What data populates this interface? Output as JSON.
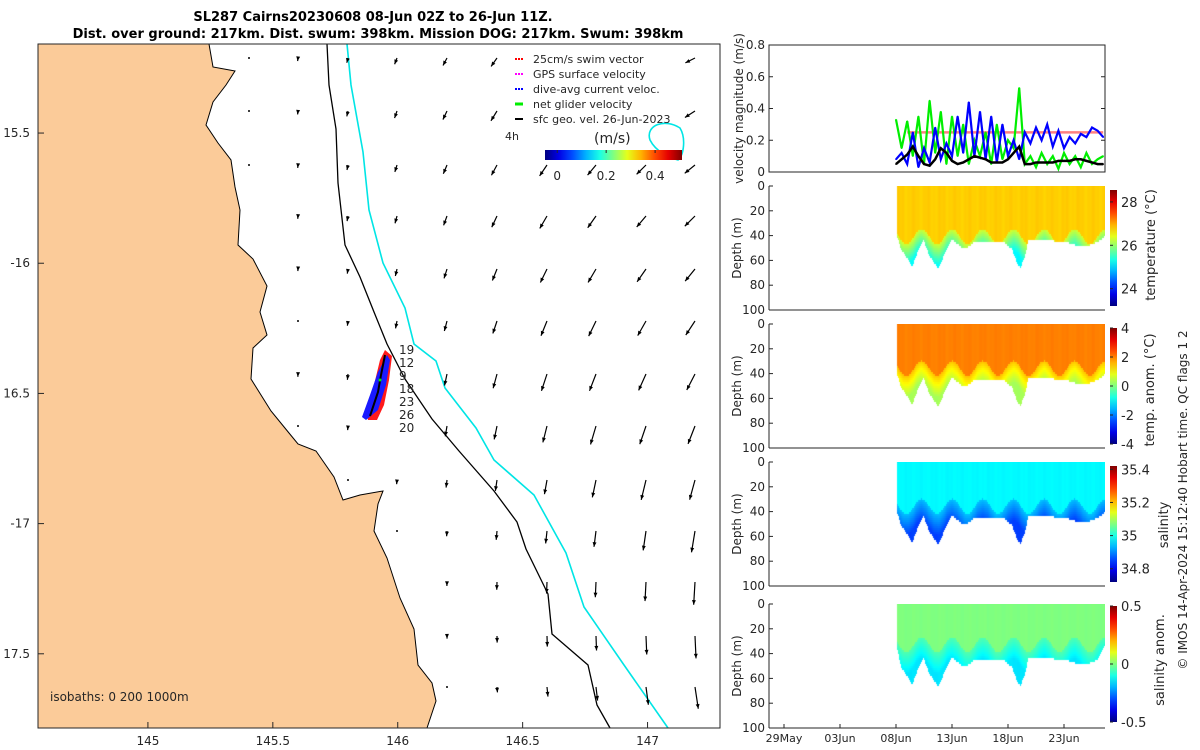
{
  "title": {
    "line1": "SL287 Cairns20230608 08-Jun 02Z to 26-Jun 11Z.",
    "line2": "Dist. over ground: 217km. Dist. swum: 398km. Mission DOG: 217km. Swum: 398km"
  },
  "map": {
    "x_ticks": [
      {
        "label": "145",
        "value": 145
      },
      {
        "label": "145.5",
        "value": 145.5
      },
      {
        "label": "146",
        "value": 146
      },
      {
        "label": "146.5",
        "value": 146.5
      },
      {
        "label": "147",
        "value": 147
      }
    ],
    "y_ticks": [
      {
        "label": "15.5",
        "value": 15.5
      },
      {
        "label": "-16",
        "value": 16
      },
      {
        "label": "16.5",
        "value": 16.5
      },
      {
        "label": "-17",
        "value": 17
      },
      {
        "label": "17.5",
        "value": 17.5
      }
    ],
    "lon_range": [
      144.56,
      147.29
    ],
    "lat_range": [
      15.158,
      17.785
    ],
    "legend": [
      {
        "label": "25cm/s swim vector",
        "color": "#ff0000"
      },
      {
        "label": "GPS surface velocity",
        "color": "#ff00ff"
      },
      {
        "label": "dive-avg current veloc.",
        "color": "#0000ff"
      },
      {
        "label": "net glider velocity",
        "color": "#00ee00"
      },
      {
        "label": "sfc geo. vel. 26-Jun-2023",
        "color": "#000000"
      }
    ],
    "time_label": "4h",
    "colorbar_title": "(m/s)",
    "colorbar_range": [
      -0.05,
      0.51
    ],
    "colorbar_ticks": [
      {
        "label": "0",
        "value": 0
      },
      {
        "label": "0.2",
        "value": 0.2
      },
      {
        "label": "0.4",
        "value": 0.4
      }
    ],
    "isobaths_label": "isobaths: 0   200  1000m",
    "track_labels": [
      "19",
      "12",
      "9",
      "18",
      "23",
      "26",
      "20"
    ],
    "land_color": "#fbcb99",
    "isobath_200_color": "#000000",
    "isobath_1000_color": "#00e5e5"
  },
  "chart_data": [
    {
      "type": "line",
      "ylabel": "velocity magnitude (m/s)",
      "ylim": [
        0,
        0.8
      ],
      "y_ticks": [
        "0",
        "0.2",
        "0.4",
        "0.6",
        "0.8"
      ],
      "xlim_june_day": [
        -3.34,
        26.66
      ],
      "x_start": 8,
      "x_step": 0.5,
      "series": [
        {
          "name": "25cm/s swim vector",
          "color": "#ff8080",
          "values": [
            null,
            null,
            0.25,
            0.25,
            0.25,
            0.25,
            0.25,
            0.25,
            0.25,
            0.25,
            0.25,
            0.25,
            0.25,
            0.25,
            0.25,
            0.25,
            0.25,
            0.25,
            0.25,
            0.25,
            0.25,
            0.25,
            0.25,
            0.25,
            0.25,
            0.25,
            0.25,
            0.25,
            0.25,
            0.25,
            0.25,
            0.25,
            0.25,
            0.25,
            0.25,
            0.25,
            0.25,
            0.25
          ]
        },
        {
          "name": "net glider velocity",
          "color": "#00ee00",
          "values": [
            0.33,
            0.15,
            0.32,
            0.1,
            0.35,
            0.05,
            0.45,
            0.12,
            0.38,
            0.05,
            0.35,
            0.1,
            0.3,
            0.05,
            0.2,
            0.1,
            0.25,
            0.05,
            0.3,
            0.08,
            0.2,
            0.15,
            0.53,
            0.05,
            0.1,
            0.03,
            0.12,
            0.05,
            0.1,
            0.02,
            0.12,
            0.05,
            0.1,
            0.03,
            0.12,
            0.05,
            0.08,
            0.1
          ]
        },
        {
          "name": "dive-avg current veloc.",
          "color": "#0000ff",
          "values": [
            0.08,
            0.12,
            0.05,
            0.25,
            0.03,
            0.15,
            0.06,
            0.28,
            0.08,
            0.18,
            0.1,
            0.35,
            0.12,
            0.44,
            0.1,
            0.38,
            0.08,
            0.35,
            0.06,
            0.3,
            0.1,
            0.2,
            0.08,
            0.25,
            0.18,
            0.28,
            0.2,
            0.3,
            0.16,
            0.26,
            0.15,
            0.22,
            0.18,
            0.24,
            0.22,
            0.28,
            0.26,
            0.22
          ]
        },
        {
          "name": "sfc geo. vel.",
          "color": "#000000",
          "values": [
            0.05,
            0.08,
            0.11,
            0.16,
            0.1,
            0.05,
            0.04,
            0.08,
            0.15,
            0.12,
            0.07,
            0.05,
            0.06,
            0.08,
            0.1,
            0.09,
            0.08,
            0.06,
            0.06,
            0.06,
            0.08,
            0.12,
            0.16,
            0.05,
            0.05,
            0.06,
            0.06,
            0.06,
            0.06,
            0.07,
            0.07,
            0.07,
            0.08,
            0.08,
            0.07,
            0.06,
            0.05,
            0.05
          ]
        }
      ]
    },
    {
      "type": "heatmap",
      "name": "temperature",
      "ylabel": "Depth (m)",
      "ylim": [
        0,
        100
      ],
      "y_ticks": [
        "0",
        "20",
        "40",
        "60",
        "80",
        "100"
      ],
      "colorbar_label": "temperature (°C)",
      "clim": [
        23.2,
        28.55
      ],
      "colorbar_ticks": [
        {
          "label": "24",
          "value": 24
        },
        {
          "label": "26",
          "value": 26
        },
        {
          "label": "28",
          "value": 28
        }
      ],
      "surface_value": 26.8,
      "deep_value": 25.2,
      "mixed_layer_depth": 40,
      "envelope": [
        [
          8,
          38
        ],
        [
          8.4,
          50
        ],
        [
          9.0,
          58
        ],
        [
          9.4,
          65
        ],
        [
          9.9,
          52
        ],
        [
          10.4,
          42
        ],
        [
          10.9,
          55
        ],
        [
          11.75,
          66
        ],
        [
          12.4,
          52
        ],
        [
          13.0,
          42
        ],
        [
          13.9,
          50
        ],
        [
          14.5,
          48
        ],
        [
          15.0,
          44
        ],
        [
          17.5,
          44
        ],
        [
          18.3,
          50
        ],
        [
          18.8,
          62
        ],
        [
          19.1,
          65
        ],
        [
          19.5,
          55
        ],
        [
          19.8,
          42
        ],
        [
          21.0,
          43
        ],
        [
          23.0,
          44
        ],
        [
          24.0,
          47
        ],
        [
          25.0,
          48
        ],
        [
          26.0,
          44
        ],
        [
          26.6,
          40
        ]
      ]
    },
    {
      "type": "heatmap",
      "name": "temperature anomaly",
      "ylabel": "Depth (m)",
      "ylim": [
        0,
        100
      ],
      "y_ticks": [
        "0",
        "20",
        "40",
        "60",
        "80",
        "100"
      ],
      "colorbar_label": "temp. anom. (°C)",
      "clim": [
        -4,
        4
      ],
      "colorbar_ticks": [
        {
          "label": "4",
          "value": 4
        },
        {
          "label": "2",
          "value": 2
        },
        {
          "label": "0",
          "value": 0
        },
        {
          "label": "-2",
          "value": -2
        },
        {
          "label": "-4",
          "value": -4
        }
      ],
      "surface_value": 2.0,
      "deep_value": 0.3,
      "mixed_layer_depth": 35,
      "envelope": [
        [
          8,
          38
        ],
        [
          8.4,
          50
        ],
        [
          9.0,
          58
        ],
        [
          9.4,
          65
        ],
        [
          9.9,
          52
        ],
        [
          10.4,
          42
        ],
        [
          10.9,
          55
        ],
        [
          11.75,
          66
        ],
        [
          12.4,
          52
        ],
        [
          13.0,
          42
        ],
        [
          13.9,
          50
        ],
        [
          14.5,
          48
        ],
        [
          15.0,
          44
        ],
        [
          17.5,
          44
        ],
        [
          18.3,
          50
        ],
        [
          18.8,
          62
        ],
        [
          19.1,
          65
        ],
        [
          19.5,
          55
        ],
        [
          19.8,
          42
        ],
        [
          21.0,
          43
        ],
        [
          23.0,
          44
        ],
        [
          24.0,
          47
        ],
        [
          25.0,
          48
        ],
        [
          26.0,
          44
        ],
        [
          26.6,
          40
        ]
      ]
    },
    {
      "type": "heatmap",
      "name": "salinity",
      "ylabel": "Depth (m)",
      "ylim": [
        0,
        100
      ],
      "y_ticks": [
        "0",
        "20",
        "40",
        "60",
        "80",
        "100"
      ],
      "colorbar_label": "salinity",
      "clim": [
        34.72,
        35.42
      ],
      "colorbar_ticks": [
        {
          "label": "35.4",
          "value": 35.4
        },
        {
          "label": "35.2",
          "value": 35.2
        },
        {
          "label": "35",
          "value": 35.0
        },
        {
          "label": "34.8",
          "value": 34.8
        }
      ],
      "surface_value": 34.98,
      "deep_value": 34.85,
      "mixed_layer_depth": 35,
      "envelope": [
        [
          8,
          38
        ],
        [
          8.4,
          50
        ],
        [
          9.0,
          58
        ],
        [
          9.4,
          65
        ],
        [
          9.9,
          52
        ],
        [
          10.4,
          42
        ],
        [
          10.9,
          55
        ],
        [
          11.75,
          66
        ],
        [
          12.4,
          52
        ],
        [
          13.0,
          42
        ],
        [
          13.9,
          50
        ],
        [
          14.5,
          48
        ],
        [
          15.0,
          44
        ],
        [
          17.5,
          44
        ],
        [
          18.3,
          50
        ],
        [
          18.8,
          62
        ],
        [
          19.1,
          65
        ],
        [
          19.5,
          55
        ],
        [
          19.8,
          42
        ],
        [
          21.0,
          43
        ],
        [
          23.0,
          44
        ],
        [
          24.0,
          47
        ],
        [
          25.0,
          48
        ],
        [
          26.0,
          44
        ],
        [
          26.6,
          40
        ]
      ]
    },
    {
      "type": "heatmap",
      "name": "salinity anomaly",
      "ylabel": "Depth (m)",
      "ylim": [
        0,
        100
      ],
      "y_ticks": [
        "0",
        "20",
        "40",
        "60",
        "80",
        "100"
      ],
      "colorbar_label": "salinity anom.",
      "clim": [
        -0.5,
        0.5
      ],
      "colorbar_ticks": [
        {
          "label": "0.5",
          "value": 0.5
        },
        {
          "label": "0",
          "value": 0
        },
        {
          "label": "-0.5",
          "value": -0.5
        }
      ],
      "surface_value": 0.0,
      "deep_value": -0.15,
      "mixed_layer_depth": 32,
      "envelope": [
        [
          8,
          32
        ],
        [
          8.4,
          50
        ],
        [
          9.0,
          58
        ],
        [
          9.4,
          65
        ],
        [
          9.9,
          52
        ],
        [
          10.4,
          42
        ],
        [
          10.9,
          55
        ],
        [
          11.75,
          66
        ],
        [
          12.4,
          52
        ],
        [
          13.0,
          42
        ],
        [
          13.9,
          50
        ],
        [
          14.5,
          48
        ],
        [
          15.0,
          44
        ],
        [
          17.5,
          44
        ],
        [
          18.3,
          50
        ],
        [
          18.8,
          62
        ],
        [
          19.1,
          65
        ],
        [
          19.5,
          55
        ],
        [
          19.8,
          42
        ],
        [
          21.0,
          43
        ],
        [
          23.0,
          44
        ],
        [
          24.0,
          47
        ],
        [
          25.0,
          48
        ],
        [
          26.0,
          44
        ],
        [
          26.6,
          32
        ]
      ]
    }
  ],
  "time_axis": {
    "ticks": [
      {
        "label": "29May",
        "value": -2
      },
      {
        "label": "03Jun",
        "value": 3
      },
      {
        "label": "08Jun",
        "value": 8
      },
      {
        "label": "13Jun",
        "value": 13
      },
      {
        "label": "18Jun",
        "value": 18
      },
      {
        "label": "23Jun",
        "value": 23
      }
    ]
  },
  "footer": "© IMOS 14-Apr-2024 15:12:40 Hobart time. QC flags 1  2"
}
